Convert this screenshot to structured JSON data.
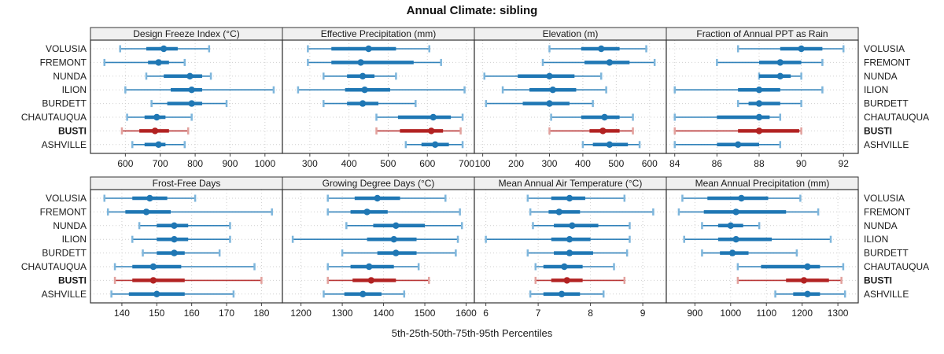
{
  "title": "Annual Climate: sibling",
  "footer": "5th-25th-50th-75th-95th Percentiles",
  "locations": [
    "VOLUSIA",
    "FREMONT",
    "NUNDA",
    "ILION",
    "BURDETT",
    "CHAUTAUQUA",
    "BUSTI",
    "ASHVILLE"
  ],
  "highlight_location": "BUSTI",
  "colors": {
    "blue": "#1F77B4",
    "blue_cap": "#7EB6DC",
    "red": "#B22222",
    "red_cap": "#E2A19D",
    "grid": "#CFCFCF",
    "panel_border": "#333333",
    "header_bg": "#F0F0F0",
    "text": "#1A1A1A"
  },
  "chart_data": {
    "type": "boxplot",
    "orientation": "horizontal",
    "statistics": [
      "p5",
      "p25",
      "p50",
      "p75",
      "p95"
    ],
    "title": "Annual Climate: sibling",
    "xlabel": "5th-25th-50th-75th-95th Percentiles",
    "categories": [
      "VOLUSIA",
      "FREMONT",
      "NUNDA",
      "ILION",
      "BURDETT",
      "CHAUTAUQUA",
      "BUSTI",
      "ASHVILLE"
    ],
    "highlight": "BUSTI",
    "grid": "dotted",
    "layout": {
      "rows": 2,
      "cols": 4
    },
    "panels": [
      {
        "title": "Design Freeze Index (°C)",
        "xlim": [
          500,
          1050
        ],
        "ticks": [
          600,
          700,
          800,
          900,
          1000
        ],
        "values": [
          [
            585,
            660,
            710,
            750,
            840
          ],
          [
            540,
            665,
            695,
            725,
            770
          ],
          [
            660,
            710,
            785,
            820,
            845
          ],
          [
            600,
            730,
            790,
            820,
            1025
          ],
          [
            675,
            720,
            790,
            820,
            890
          ],
          [
            605,
            655,
            690,
            715,
            790
          ],
          [
            590,
            640,
            685,
            725,
            780
          ],
          [
            620,
            655,
            695,
            715,
            770
          ]
        ]
      },
      {
        "title": "Effective Precipitation (mm)",
        "xlim": [
          230,
          720
        ],
        "ticks": [
          300,
          400,
          500,
          600,
          700
        ],
        "values": [
          [
            295,
            355,
            450,
            520,
            605
          ],
          [
            295,
            355,
            430,
            565,
            635
          ],
          [
            335,
            395,
            435,
            465,
            520
          ],
          [
            270,
            390,
            440,
            505,
            695
          ],
          [
            335,
            395,
            435,
            475,
            570
          ],
          [
            470,
            525,
            615,
            660,
            690
          ],
          [
            470,
            530,
            610,
            640,
            685
          ],
          [
            545,
            585,
            620,
            655,
            690
          ]
        ]
      },
      {
        "title": "Elevation (m)",
        "xlim": [
          75,
          650
        ],
        "ticks": [
          100,
          200,
          300,
          400,
          500,
          600
        ],
        "values": [
          [
            300,
            395,
            455,
            510,
            590
          ],
          [
            280,
            405,
            480,
            540,
            615
          ],
          [
            105,
            205,
            300,
            375,
            455
          ],
          [
            160,
            240,
            310,
            380,
            470
          ],
          [
            110,
            220,
            300,
            360,
            430
          ],
          [
            305,
            395,
            465,
            510,
            550
          ],
          [
            300,
            420,
            460,
            510,
            550
          ],
          [
            400,
            430,
            480,
            535,
            570
          ]
        ]
      },
      {
        "title": "Fraction of Annual PPT as Rain",
        "xlim": [
          83.6,
          92.7
        ],
        "ticks": [
          84,
          86,
          88,
          90,
          92
        ],
        "values": [
          [
            87,
            89,
            90,
            91,
            92
          ],
          [
            86,
            88,
            89,
            90,
            91
          ],
          [
            88,
            88,
            89,
            89.5,
            90
          ],
          [
            84,
            87,
            88,
            89,
            91
          ],
          [
            87,
            87.5,
            88,
            89,
            90
          ],
          [
            84,
            86,
            88,
            88.5,
            89
          ],
          [
            84,
            87,
            88,
            89.9,
            90
          ],
          [
            84,
            86,
            87,
            88,
            89
          ]
        ]
      },
      {
        "title": "Frost-Free Days",
        "xlim": [
          131,
          186
        ],
        "ticks": [
          140,
          150,
          160,
          170,
          180
        ],
        "values": [
          [
            135,
            143,
            148,
            153,
            161
          ],
          [
            136,
            141,
            147,
            154,
            183
          ],
          [
            145,
            150,
            155,
            159,
            171
          ],
          [
            143,
            150,
            155,
            159,
            171
          ],
          [
            146,
            150,
            155,
            158,
            168
          ],
          [
            138,
            143,
            149,
            157,
            178
          ],
          [
            138,
            143,
            149,
            158,
            180
          ],
          [
            137,
            142,
            150,
            158,
            172
          ]
        ]
      },
      {
        "title": "Growing Degree Days (°C)",
        "xlim": [
          1155,
          1620
        ],
        "ticks": [
          1200,
          1300,
          1400,
          1500,
          1600
        ],
        "values": [
          [
            1265,
            1330,
            1385,
            1440,
            1550
          ],
          [
            1265,
            1320,
            1360,
            1410,
            1585
          ],
          [
            1310,
            1375,
            1430,
            1500,
            1590
          ],
          [
            1180,
            1360,
            1425,
            1480,
            1580
          ],
          [
            1300,
            1385,
            1430,
            1480,
            1575
          ],
          [
            1265,
            1320,
            1365,
            1425,
            1485
          ],
          [
            1265,
            1325,
            1370,
            1430,
            1510
          ],
          [
            1255,
            1305,
            1350,
            1395,
            1450
          ]
        ]
      },
      {
        "title": "Mean Annual Air Temperature (°C)",
        "xlim": [
          5.78,
          9.45
        ],
        "ticks": [
          6,
          7,
          8,
          9
        ],
        "values": [
          [
            6.8,
            7.25,
            7.6,
            7.9,
            8.65
          ],
          [
            6.85,
            7.2,
            7.4,
            7.8,
            9.2
          ],
          [
            6.9,
            7.3,
            7.65,
            8.15,
            8.75
          ],
          [
            6.0,
            7.25,
            7.6,
            8.0,
            8.75
          ],
          [
            6.8,
            7.3,
            7.6,
            8.05,
            8.7
          ],
          [
            6.95,
            7.1,
            7.5,
            7.85,
            8.45
          ],
          [
            6.95,
            7.25,
            7.55,
            7.85,
            8.65
          ],
          [
            6.85,
            7.1,
            7.45,
            7.8,
            8.25
          ]
        ]
      },
      {
        "title": "Mean Annual Precipitation (mm)",
        "xlim": [
          820,
          1357
        ],
        "ticks": [
          900,
          1000,
          1100,
          1200,
          1300
        ],
        "values": [
          [
            865,
            935,
            1030,
            1105,
            1195
          ],
          [
            855,
            925,
            1015,
            1155,
            1245
          ],
          [
            920,
            965,
            1000,
            1035,
            1080
          ],
          [
            870,
            965,
            1015,
            1115,
            1280
          ],
          [
            920,
            970,
            1005,
            1050,
            1185
          ],
          [
            1020,
            1085,
            1215,
            1250,
            1315
          ],
          [
            1020,
            1155,
            1205,
            1275,
            1310
          ],
          [
            1125,
            1175,
            1215,
            1250,
            1320
          ]
        ]
      }
    ]
  }
}
